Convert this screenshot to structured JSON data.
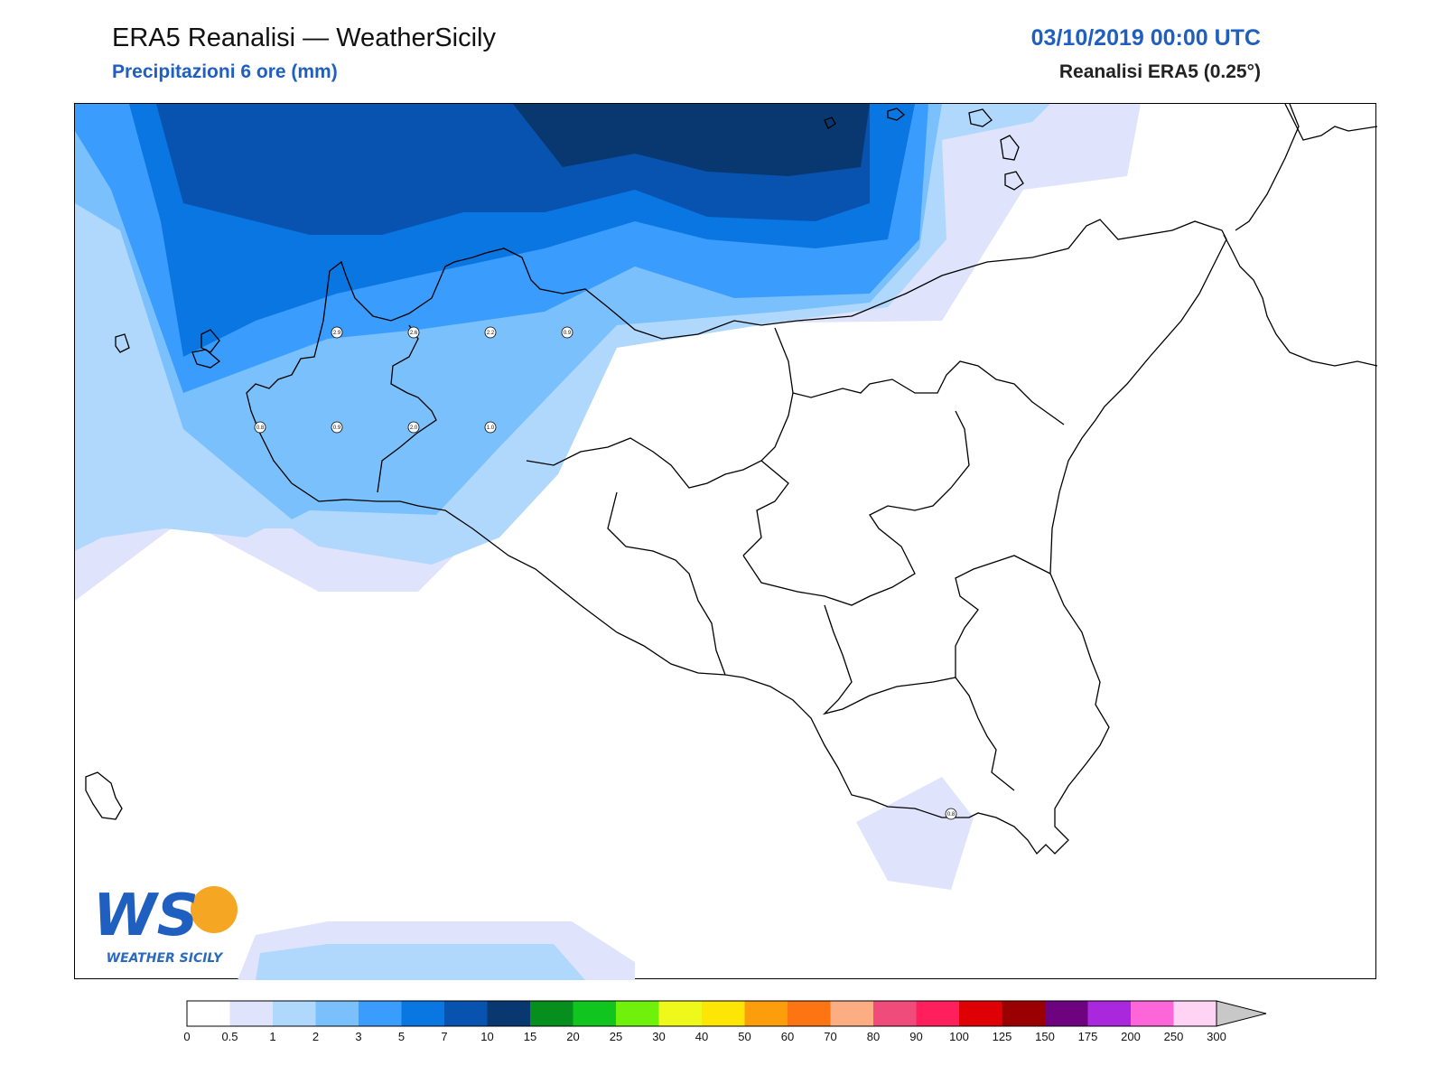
{
  "header": {
    "title": "ERA5 Reanalisi — WeatherSicily",
    "subtitle": "Precipitazioni 6 ore (mm)",
    "datetime": "03/10/2019 00:00 UTC",
    "source": "Reanalisi ERA5 (0.25°)"
  },
  "logo": {
    "letters": "WS",
    "text": "WEATHER SICILY"
  },
  "legend": {
    "ticks": [
      "0",
      "0.5",
      "1",
      "2",
      "3",
      "5",
      "7",
      "10",
      "15",
      "20",
      "25",
      "30",
      "40",
      "50",
      "60",
      "70",
      "80",
      "90",
      "100",
      "125",
      "150",
      "175",
      "200",
      "250",
      "300"
    ],
    "colors": [
      "#ffffff",
      "#e0e3fc",
      "#b0d8fd",
      "#7ac0fd",
      "#3a9cfc",
      "#0a76e2",
      "#0853b0",
      "#08386f",
      "#068f1c",
      "#10c61e",
      "#6ff10c",
      "#eef81a",
      "#fde605",
      "#fc9d0c",
      "#fd7412",
      "#fdad82",
      "#ef4c7c",
      "#fe1f5c",
      "#de0004",
      "#9a0001",
      "#6d037f",
      "#a928dd",
      "#fd66d8",
      "#fed3f4"
    ],
    "overflow_color": "#c8c8c8"
  },
  "stations": [
    {
      "label": "2.9"
    },
    {
      "label": "2.6"
    },
    {
      "label": "2.2"
    },
    {
      "label": "0.9"
    },
    {
      "label": "0.8"
    },
    {
      "label": "0.9"
    },
    {
      "label": "2.0"
    },
    {
      "label": "1.0"
    },
    {
      "label": "0.8"
    }
  ]
}
